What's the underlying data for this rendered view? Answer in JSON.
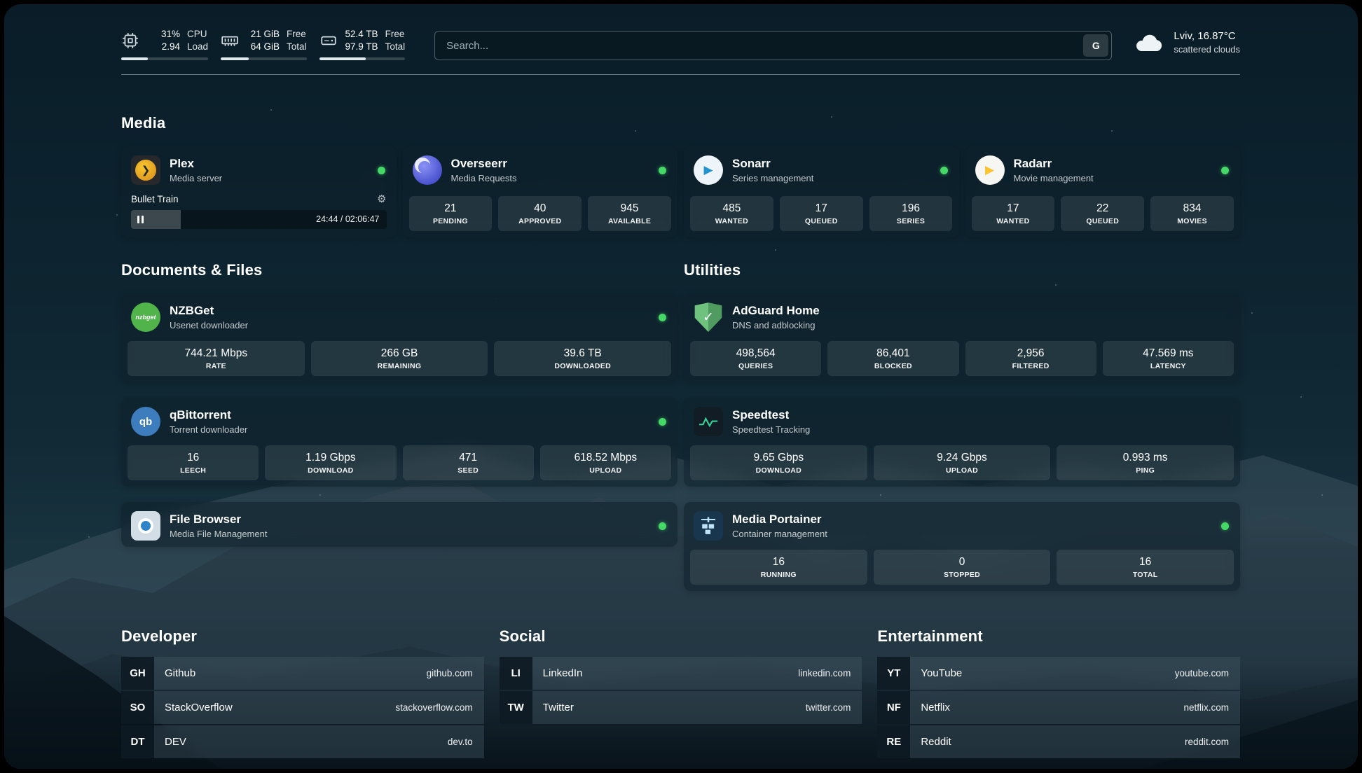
{
  "topbar": {
    "cpu": {
      "value_top": "31%",
      "value_bottom": "2.94",
      "label_top": "CPU",
      "label_bottom": "Load",
      "meter_percent": 31
    },
    "ram": {
      "value_top": "21 GiB",
      "value_bottom": "64 GiB",
      "label_top": "Free",
      "label_bottom": "Total",
      "meter_percent": 33
    },
    "disk": {
      "value_top": "52.4 TB",
      "value_bottom": "97.9 TB",
      "label_top": "Free",
      "label_bottom": "Total",
      "meter_percent": 54
    },
    "search": {
      "placeholder": "Search...",
      "engine_button": "G"
    },
    "weather": {
      "location": "Lviv, 16.87°C",
      "condition": "scattered clouds"
    }
  },
  "sections": {
    "media": {
      "title": "Media",
      "cards": [
        {
          "name": "Plex",
          "subtitle": "Media server",
          "icon_text": "❯",
          "now_playing": {
            "title": "Bullet Train",
            "time": "24:44 / 02:06:47",
            "progress_percent": 19.5
          }
        },
        {
          "name": "Overseerr",
          "subtitle": "Media Requests",
          "stats": [
            {
              "value": "21",
              "label": "PENDING"
            },
            {
              "value": "40",
              "label": "APPROVED"
            },
            {
              "value": "945",
              "label": "AVAILABLE"
            }
          ]
        },
        {
          "name": "Sonarr",
          "subtitle": "Series management",
          "icon_text": "▶",
          "stats": [
            {
              "value": "485",
              "label": "WANTED"
            },
            {
              "value": "17",
              "label": "QUEUED"
            },
            {
              "value": "196",
              "label": "SERIES"
            }
          ]
        },
        {
          "name": "Radarr",
          "subtitle": "Movie management",
          "icon_text": "▶",
          "stats": [
            {
              "value": "17",
              "label": "WANTED"
            },
            {
              "value": "22",
              "label": "QUEUED"
            },
            {
              "value": "834",
              "label": "MOVIES"
            }
          ]
        }
      ]
    },
    "documents": {
      "title": "Documents & Files",
      "cards": [
        {
          "name": "NZBGet",
          "subtitle": "Usenet downloader",
          "icon_text": "nzbget",
          "stats": [
            {
              "value": "744.21 Mbps",
              "label": "RATE"
            },
            {
              "value": "266 GB",
              "label": "REMAINING"
            },
            {
              "value": "39.6 TB",
              "label": "DOWNLOADED"
            }
          ]
        },
        {
          "name": "qBittorrent",
          "subtitle": "Torrent downloader",
          "icon_text": "qb",
          "stats": [
            {
              "value": "16",
              "label": "LEECH"
            },
            {
              "value": "1.19 Gbps",
              "label": "DOWNLOAD"
            },
            {
              "value": "471",
              "label": "SEED"
            },
            {
              "value": "618.52 Mbps",
              "label": "UPLOAD"
            }
          ]
        },
        {
          "name": "File Browser",
          "subtitle": "Media File Management",
          "stats": []
        }
      ]
    },
    "utilities": {
      "title": "Utilities",
      "cards": [
        {
          "name": "AdGuard Home",
          "subtitle": "DNS and adblocking",
          "icon_text": "✓",
          "stats": [
            {
              "value": "498,564",
              "label": "QUERIES"
            },
            {
              "value": "86,401",
              "label": "BLOCKED"
            },
            {
              "value": "2,956",
              "label": "FILTERED"
            },
            {
              "value": "47.569 ms",
              "label": "LATENCY"
            }
          ]
        },
        {
          "name": "Speedtest",
          "subtitle": "Speedtest Tracking",
          "stats": [
            {
              "value": "9.65 Gbps",
              "label": "DOWNLOAD"
            },
            {
              "value": "9.24 Gbps",
              "label": "UPLOAD"
            },
            {
              "value": "0.993 ms",
              "label": "PING"
            }
          ]
        },
        {
          "name": "Media Portainer",
          "subtitle": "Container management",
          "stats": [
            {
              "value": "16",
              "label": "RUNNING"
            },
            {
              "value": "0",
              "label": "STOPPED"
            },
            {
              "value": "16",
              "label": "TOTAL"
            }
          ]
        }
      ]
    }
  },
  "bookmarks": {
    "developer": {
      "title": "Developer",
      "items": [
        {
          "abbr": "GH",
          "name": "Github",
          "url": "github.com"
        },
        {
          "abbr": "SO",
          "name": "StackOverflow",
          "url": "stackoverflow.com"
        },
        {
          "abbr": "DT",
          "name": "DEV",
          "url": "dev.to"
        }
      ]
    },
    "social": {
      "title": "Social",
      "items": [
        {
          "abbr": "LI",
          "name": "LinkedIn",
          "url": "linkedin.com"
        },
        {
          "abbr": "TW",
          "name": "Twitter",
          "url": "twitter.com"
        }
      ]
    },
    "entertainment": {
      "title": "Entertainment",
      "items": [
        {
          "abbr": "YT",
          "name": "YouTube",
          "url": "youtube.com"
        },
        {
          "abbr": "NF",
          "name": "Netflix",
          "url": "netflix.com"
        },
        {
          "abbr": "RE",
          "name": "Reddit",
          "url": "reddit.com"
        }
      ]
    }
  },
  "colors": {
    "status_online": "#46d867",
    "plex_accent": "#e5a00d",
    "adguard_green": "#6fc27e",
    "speedtest_green": "#34d399"
  }
}
